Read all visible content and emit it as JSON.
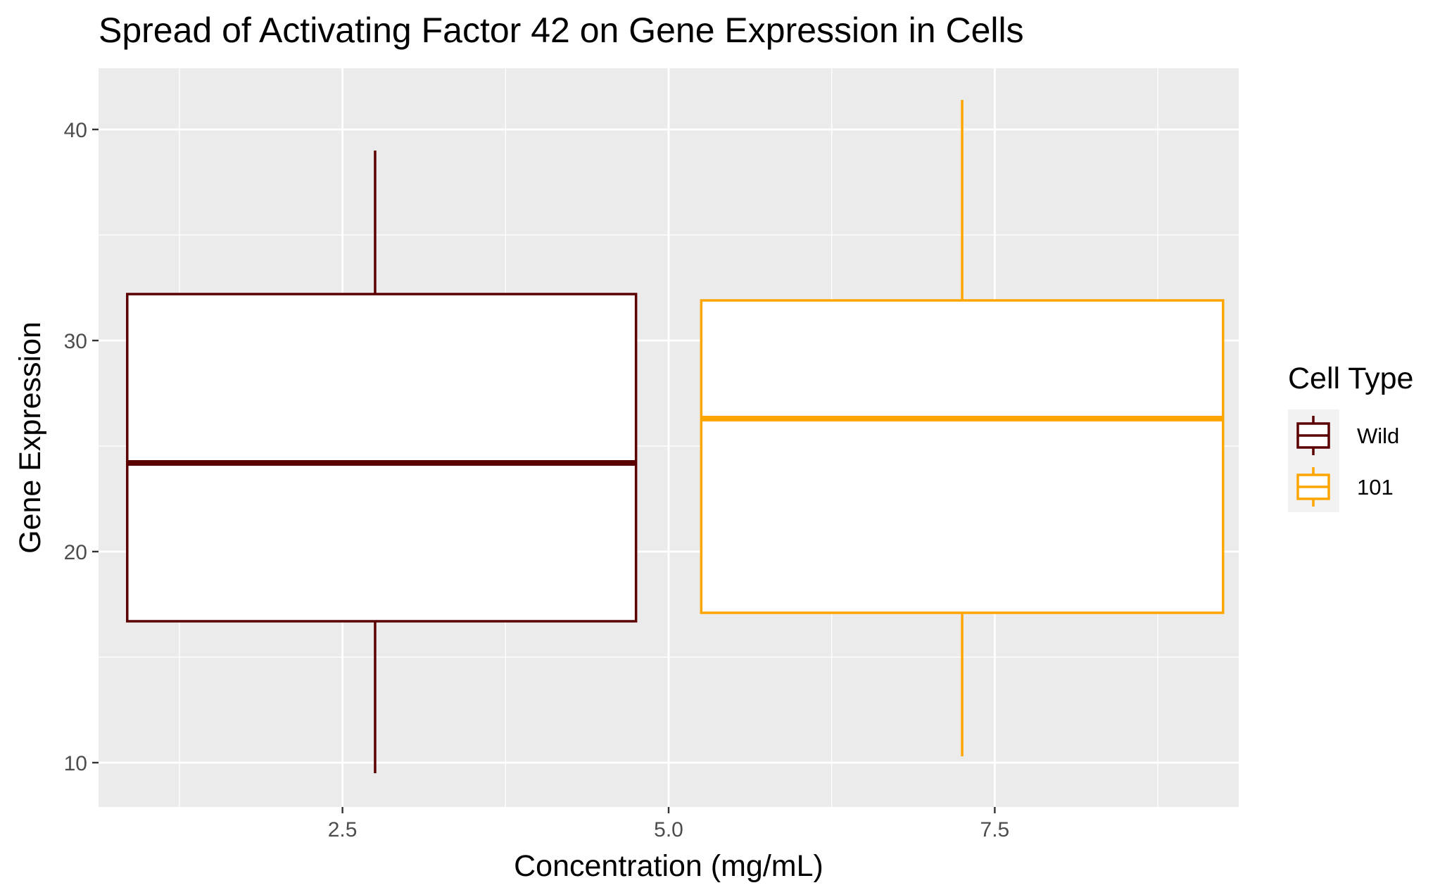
{
  "chart_data": {
    "type": "boxplot",
    "title": "Spread of Activating Factor 42 on Gene Expression in Cells",
    "xlabel": "Concentration (mg/mL)",
    "ylabel": "Gene Expression",
    "xlim": [
      0.63,
      9.37
    ],
    "ylim": [
      7.9,
      42.9
    ],
    "x_ticks": [
      2.5,
      5.0,
      7.5
    ],
    "x_tick_labels": [
      "2.5",
      "5.0",
      "7.5"
    ],
    "y_ticks": [
      10,
      20,
      30,
      40
    ],
    "y_tick_labels": [
      "10",
      "20",
      "30",
      "40"
    ],
    "grid": true,
    "legend": {
      "title": "Cell Type",
      "position": "right"
    },
    "series": [
      {
        "name": "Wild",
        "color": "#5a0000",
        "x_center": 2.75,
        "x_range": [
          0.85,
          4.75
        ],
        "min": 9.5,
        "q1": 16.7,
        "median": 24.2,
        "q3": 32.2,
        "max": 39.0
      },
      {
        "name": "101",
        "color": "#ffa500",
        "x_center": 7.25,
        "x_range": [
          5.25,
          9.25
        ],
        "min": 10.3,
        "q1": 17.1,
        "median": 26.3,
        "q3": 31.9,
        "max": 41.4
      }
    ]
  }
}
